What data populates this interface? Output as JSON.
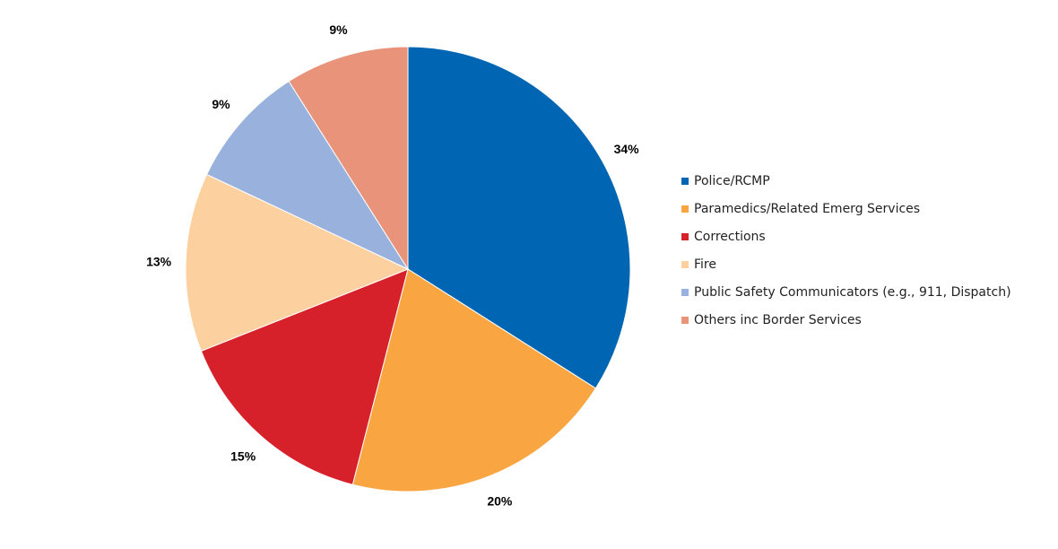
{
  "chart_data": {
    "type": "pie",
    "title": "",
    "legend_position": "right",
    "slices": [
      {
        "label": "Police/RCMP",
        "value": 34,
        "value_label": "34%",
        "color": "#0066B3"
      },
      {
        "label": "Paramedics/Related Emerg Services",
        "value": 20,
        "value_label": "20%",
        "color": "#F9A541"
      },
      {
        "label": "Corrections",
        "value": 15,
        "value_label": "15%",
        "color": "#D7212A"
      },
      {
        "label": "Fire",
        "value": 13,
        "value_label": "13%",
        "color": "#FDD09F"
      },
      {
        "label": "Public Safety Communicators (e.g., 911, Dispatch)",
        "value": 9,
        "value_label": "9%",
        "color": "#98B2DD"
      },
      {
        "label": "Others inc Border Services",
        "value": 9,
        "value_label": "9%",
        "color": "#E8937A"
      }
    ]
  }
}
